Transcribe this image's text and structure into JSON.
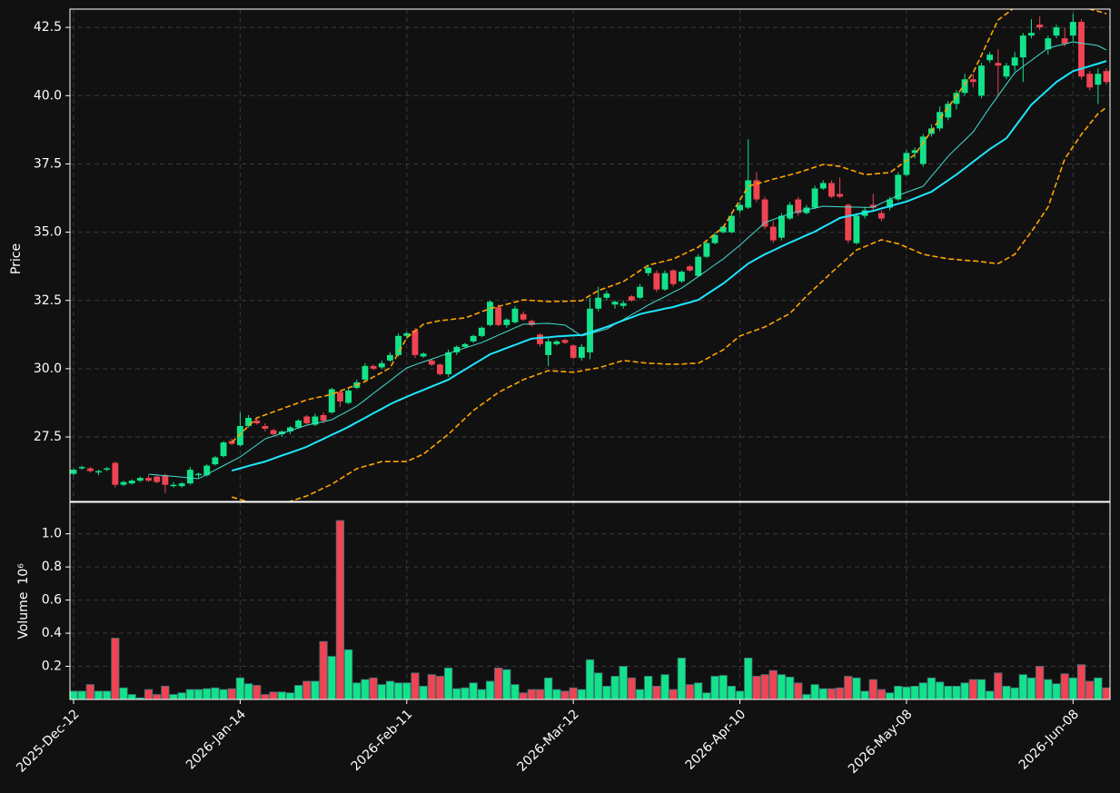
{
  "chart_data": {
    "type": "candlestick",
    "ylabel": "Price",
    "categories": [
      "2025-Dec-12",
      null,
      null,
      null,
      null,
      null,
      null,
      null,
      null,
      null,
      null,
      null,
      null,
      null,
      null,
      null,
      null,
      null,
      null,
      null,
      "2026-Jan-14",
      null,
      null,
      null,
      null,
      null,
      null,
      null,
      null,
      null,
      null,
      null,
      null,
      null,
      null,
      null,
      null,
      null,
      null,
      null,
      "2026-Feb-11",
      null,
      null,
      null,
      null,
      null,
      null,
      null,
      null,
      null,
      null,
      null,
      null,
      null,
      null,
      null,
      null,
      null,
      null,
      null,
      "2026-Mar-12",
      null,
      null,
      null,
      null,
      null,
      null,
      null,
      null,
      null,
      null,
      null,
      null,
      null,
      null,
      null,
      null,
      null,
      null,
      null,
      "2026-Apr-10",
      null,
      null,
      null,
      null,
      null,
      null,
      null,
      null,
      null,
      null,
      null,
      null,
      null,
      null,
      null,
      null,
      null,
      null,
      null,
      "2026-May-08",
      null,
      null,
      null,
      null,
      null,
      null,
      null,
      null,
      null,
      null,
      null,
      null,
      null,
      null,
      null,
      null,
      null,
      null,
      null,
      "2026-Jun-08",
      null,
      null,
      null,
      null
    ],
    "open": [
      26.15,
      26.35,
      26.35,
      26.2,
      26.3,
      26.55,
      25.75,
      25.8,
      25.9,
      26.0,
      26.05,
      26.1,
      25.7,
      25.7,
      25.8,
      26.1,
      26.1,
      26.5,
      26.8,
      27.35,
      27.2,
      27.9,
      28.1,
      27.9,
      27.75,
      27.6,
      27.7,
      27.85,
      28.25,
      27.95,
      28.3,
      28.4,
      29.15,
      28.75,
      29.3,
      29.6,
      30.1,
      30.05,
      30.3,
      30.5,
      31.2,
      31.4,
      30.45,
      30.3,
      30.15,
      29.8,
      30.6,
      30.8,
      31.0,
      31.2,
      31.6,
      32.25,
      31.6,
      31.7,
      32.0,
      31.75,
      31.25,
      30.5,
      30.9,
      31.05,
      30.85,
      30.4,
      30.6,
      32.2,
      32.6,
      32.35,
      32.3,
      32.65,
      32.6,
      33.5,
      33.5,
      32.9,
      33.6,
      33.2,
      33.75,
      33.4,
      34.1,
      34.6,
      35.0,
      35.0,
      35.8,
      35.9,
      36.9,
      36.2,
      35.2,
      34.8,
      35.5,
      36.2,
      35.7,
      35.9,
      36.6,
      36.8,
      36.4,
      36.0,
      34.6,
      35.6,
      36.0,
      35.7,
      35.9,
      36.2,
      37.1,
      37.9,
      37.5,
      38.6,
      38.8,
      39.2,
      39.7,
      40.1,
      40.6,
      40.0,
      41.3,
      41.2,
      40.7,
      41.1,
      41.4,
      42.2,
      42.6,
      41.7,
      42.2,
      42.1,
      42.2,
      42.7,
      40.8,
      40.4,
      40.9
    ],
    "high": [
      26.35,
      26.45,
      26.4,
      26.3,
      26.4,
      26.6,
      25.9,
      25.95,
      26.05,
      26.1,
      26.1,
      26.15,
      25.85,
      25.85,
      26.4,
      26.2,
      26.5,
      26.8,
      27.35,
      27.45,
      28.4,
      28.3,
      28.2,
      28.0,
      27.8,
      27.75,
      27.9,
      28.15,
      28.3,
      28.35,
      28.4,
      29.3,
      29.2,
      29.3,
      29.6,
      30.2,
      30.15,
      30.3,
      30.6,
      31.3,
      31.35,
      31.5,
      30.6,
      30.35,
      30.2,
      30.7,
      30.85,
      30.95,
      31.25,
      31.55,
      32.5,
      32.35,
      31.85,
      32.3,
      32.1,
      31.8,
      31.3,
      31.1,
      31.05,
      31.1,
      30.9,
      30.9,
      32.6,
      33.0,
      32.85,
      32.5,
      32.5,
      32.7,
      33.1,
      33.8,
      33.6,
      33.6,
      33.65,
      33.6,
      33.8,
      34.2,
      34.7,
      35.0,
      35.25,
      35.7,
      36.1,
      38.4,
      37.2,
      36.3,
      35.4,
      35.7,
      36.1,
      36.3,
      36.0,
      36.7,
      36.9,
      36.9,
      37.0,
      36.05,
      35.7,
      35.9,
      36.4,
      35.8,
      36.3,
      37.2,
      38.0,
      38.1,
      38.6,
      38.95,
      39.6,
      39.8,
      40.2,
      40.8,
      40.8,
      41.2,
      41.6,
      41.7,
      41.2,
      41.6,
      42.3,
      42.8,
      42.9,
      42.2,
      42.6,
      42.5,
      43.0,
      42.8,
      40.9,
      41.0,
      41.0
    ],
    "low": [
      26.1,
      26.3,
      26.2,
      26.1,
      26.25,
      25.65,
      25.7,
      25.75,
      25.85,
      25.85,
      25.8,
      25.45,
      25.65,
      25.65,
      25.75,
      26.0,
      26.05,
      26.45,
      26.75,
      27.2,
      27.15,
      27.85,
      27.95,
      27.7,
      27.55,
      27.5,
      27.6,
      27.8,
      27.95,
      27.9,
      28.0,
      28.35,
      28.6,
      28.7,
      29.25,
      29.55,
      29.95,
      30.0,
      30.25,
      30.45,
      31.1,
      30.4,
      30.4,
      30.1,
      29.75,
      29.7,
      30.5,
      30.75,
      30.95,
      31.15,
      31.55,
      31.55,
      31.5,
      31.65,
      31.75,
      31.55,
      30.8,
      30.1,
      30.85,
      30.9,
      30.35,
      30.3,
      30.35,
      32.1,
      32.5,
      32.2,
      32.2,
      32.45,
      32.55,
      33.4,
      32.8,
      32.85,
      33.0,
      33.15,
      33.55,
      33.35,
      34.05,
      34.55,
      34.95,
      34.95,
      35.7,
      35.85,
      36.1,
      35.1,
      34.6,
      34.7,
      35.45,
      35.6,
      35.65,
      35.85,
      36.55,
      36.25,
      36.25,
      34.6,
      34.55,
      35.5,
      35.75,
      35.4,
      35.8,
      36.15,
      37.05,
      37.7,
      37.4,
      38.5,
      38.7,
      39.1,
      39.5,
      40.0,
      40.3,
      39.9,
      41.2,
      40.0,
      40.6,
      40.9,
      40.5,
      42.1,
      42.4,
      41.5,
      42.1,
      41.8,
      42.0,
      40.6,
      40.2,
      39.7,
      40.4
    ],
    "close": [
      26.3,
      26.4,
      26.25,
      26.25,
      26.35,
      25.75,
      25.85,
      25.9,
      26.0,
      25.9,
      25.85,
      25.75,
      25.75,
      25.8,
      26.3,
      26.15,
      26.45,
      26.75,
      27.3,
      27.25,
      27.9,
      28.2,
      28.0,
      27.8,
      27.6,
      27.7,
      27.85,
      28.1,
      28.0,
      28.25,
      28.1,
      29.25,
      28.8,
      29.2,
      29.5,
      30.1,
      30.0,
      30.2,
      30.5,
      31.2,
      31.3,
      30.5,
      30.55,
      30.15,
      29.8,
      30.6,
      30.8,
      30.9,
      31.2,
      31.5,
      32.45,
      31.6,
      31.8,
      32.2,
      31.8,
      31.6,
      30.9,
      31.0,
      31.0,
      30.95,
      30.4,
      30.8,
      32.2,
      32.6,
      32.75,
      32.45,
      32.4,
      32.5,
      33.0,
      33.7,
      32.9,
      33.5,
      33.1,
      33.55,
      33.6,
      34.1,
      34.6,
      34.9,
      35.2,
      35.6,
      36.0,
      36.9,
      36.2,
      35.2,
      34.7,
      35.6,
      36.0,
      35.7,
      35.9,
      36.6,
      36.8,
      36.3,
      36.3,
      34.7,
      35.6,
      35.8,
      35.9,
      35.5,
      36.2,
      37.1,
      37.9,
      38.0,
      38.5,
      38.8,
      39.4,
      39.7,
      40.1,
      40.6,
      40.5,
      41.1,
      41.5,
      41.1,
      41.1,
      41.4,
      42.2,
      42.3,
      42.5,
      42.1,
      42.5,
      41.9,
      42.7,
      40.7,
      40.3,
      40.8,
      40.5
    ],
    "up_color": "#12e38a",
    "down_color": "#ef4452",
    "ylim": [
      25.14,
      43.17
    ],
    "yticks": [
      27.5,
      {
        "value": 30,
        "label": "30.0"
      },
      32.5,
      {
        "value": 35,
        "label": "35.0"
      },
      37.5,
      {
        "value": 40,
        "label": "40.0"
      },
      42.5
    ],
    "grid": true,
    "overlays": [
      {
        "color": "#40e0d0",
        "width": 1,
        "style": "solid",
        "values": [
          null,
          null,
          null,
          null,
          null,
          null,
          null,
          null,
          null,
          26.14,
          26.11,
          26.08,
          26.06,
          26.03,
          26.0,
          25.97,
          26.13,
          26.29,
          26.45,
          26.61,
          26.77,
          26.99,
          27.21,
          27.43,
          27.53,
          27.63,
          27.73,
          27.83,
          27.93,
          28.0,
          28.06,
          28.13,
          28.3,
          28.46,
          28.63,
          28.86,
          29.1,
          29.33,
          29.56,
          29.8,
          30.03,
          30.14,
          30.25,
          30.35,
          30.46,
          30.56,
          30.66,
          30.76,
          30.86,
          30.96,
          31.09,
          31.23,
          31.36,
          31.5,
          31.63,
          31.64,
          31.65,
          31.66,
          31.63,
          31.6,
          31.4,
          31.2,
          31.28,
          31.37,
          31.45,
          31.63,
          31.8,
          31.98,
          32.15,
          32.33,
          32.49,
          32.64,
          32.8,
          32.95,
          33.16,
          33.38,
          33.59,
          33.81,
          34.02,
          34.27,
          34.52,
          34.8,
          35.07,
          35.35,
          35.46,
          35.57,
          35.68,
          35.75,
          35.82,
          35.88,
          35.95,
          35.94,
          35.93,
          35.92,
          35.92,
          35.91,
          35.91,
          36.06,
          36.2,
          36.35,
          36.46,
          36.57,
          36.68,
          37.05,
          37.41,
          37.78,
          38.08,
          38.37,
          38.67,
          39.12,
          39.57,
          39.99,
          40.42,
          40.84,
          41.07,
          41.29,
          41.52,
          41.74,
          41.82,
          41.89,
          41.97,
          41.92,
          41.88,
          41.83,
          41.67
        ]
      },
      {
        "color": "#1ee6ff",
        "width": 2,
        "style": "solid",
        "values": [
          null,
          null,
          null,
          null,
          null,
          null,
          null,
          null,
          null,
          null,
          null,
          null,
          null,
          null,
          null,
          null,
          null,
          null,
          null,
          26.27,
          26.35,
          26.44,
          26.52,
          26.6,
          26.71,
          26.82,
          26.92,
          27.03,
          27.14,
          27.29,
          27.43,
          27.58,
          27.72,
          27.87,
          28.04,
          28.2,
          28.37,
          28.53,
          28.7,
          28.84,
          28.97,
          29.1,
          29.22,
          29.35,
          29.47,
          29.6,
          29.79,
          29.97,
          30.16,
          30.34,
          30.53,
          30.64,
          30.76,
          30.87,
          30.99,
          31.1,
          31.13,
          31.15,
          31.18,
          31.2,
          31.22,
          31.23,
          31.33,
          31.43,
          31.53,
          31.65,
          31.77,
          31.88,
          32.0,
          32.07,
          32.13,
          32.2,
          32.26,
          32.35,
          32.43,
          32.52,
          32.72,
          32.92,
          33.12,
          33.36,
          33.61,
          33.85,
          34.02,
          34.19,
          34.33,
          34.48,
          34.62,
          34.75,
          34.89,
          35.02,
          35.19,
          35.35,
          35.52,
          35.59,
          35.65,
          35.72,
          35.78,
          35.87,
          35.95,
          36.04,
          36.12,
          36.24,
          36.36,
          36.48,
          36.69,
          36.9,
          37.11,
          37.34,
          37.58,
          37.81,
          38.04,
          38.24,
          38.44,
          38.85,
          39.26,
          39.67,
          39.95,
          40.22,
          40.5,
          40.7,
          40.9,
          40.99,
          41.08,
          41.17,
          41.27
        ]
      },
      {
        "color": "#ffa500",
        "width": 1.6,
        "style": "dashed",
        "values": [
          null,
          null,
          null,
          null,
          null,
          null,
          null,
          null,
          null,
          null,
          null,
          null,
          null,
          null,
          null,
          null,
          null,
          null,
          null,
          27.3,
          27.6,
          27.9,
          28.2,
          28.31,
          28.42,
          28.53,
          28.64,
          28.75,
          28.86,
          28.93,
          28.99,
          29.06,
          29.18,
          29.3,
          29.41,
          29.53,
          29.7,
          29.86,
          30.03,
          30.58,
          31.13,
          31.38,
          31.63,
          31.7,
          31.76,
          31.79,
          31.83,
          31.86,
          31.97,
          32.09,
          32.2,
          32.28,
          32.36,
          32.44,
          32.52,
          32.5,
          32.48,
          32.46,
          32.47,
          32.47,
          32.48,
          32.49,
          32.68,
          32.86,
          32.97,
          33.08,
          33.19,
          33.39,
          33.59,
          33.79,
          33.87,
          33.94,
          34.02,
          34.16,
          34.31,
          34.45,
          34.69,
          34.94,
          35.18,
          35.68,
          36.18,
          36.68,
          36.77,
          36.85,
          36.94,
          37.02,
          37.1,
          37.18,
          37.28,
          37.38,
          37.48,
          37.45,
          37.41,
          37.31,
          37.21,
          37.11,
          37.13,
          37.16,
          37.18,
          37.4,
          37.62,
          37.84,
          38.27,
          38.71,
          39.14,
          39.57,
          39.99,
          40.42,
          40.84,
          41.48,
          42.13,
          42.77,
          43.0,
          43.23,
          43.32,
          43.41,
          43.5,
          43.49,
          43.48,
          43.46,
          43.45,
          43.31,
          43.17,
          43.09,
          43.0
        ]
      },
      {
        "color": "#ffa500",
        "width": 1.6,
        "style": "dashed",
        "values": [
          null,
          null,
          null,
          null,
          null,
          null,
          null,
          null,
          null,
          null,
          null,
          null,
          null,
          null,
          null,
          null,
          null,
          null,
          null,
          25.3,
          25.21,
          25.13,
          25.04,
          25.04,
          25.04,
          25.04,
          25.14,
          25.24,
          25.34,
          25.48,
          25.63,
          25.77,
          25.96,
          26.15,
          26.34,
          26.43,
          26.51,
          26.6,
          26.6,
          26.6,
          26.6,
          26.74,
          26.87,
          27.11,
          27.36,
          27.6,
          27.89,
          28.18,
          28.47,
          28.69,
          28.91,
          29.13,
          29.29,
          29.44,
          29.6,
          29.71,
          29.82,
          29.93,
          29.91,
          29.89,
          29.87,
          29.92,
          29.98,
          30.03,
          30.12,
          30.21,
          30.3,
          30.27,
          30.23,
          30.2,
          30.19,
          30.17,
          30.16,
          30.17,
          30.19,
          30.2,
          30.36,
          30.53,
          30.69,
          30.95,
          31.2,
          31.31,
          31.42,
          31.53,
          31.69,
          31.86,
          32.02,
          32.34,
          32.66,
          32.95,
          33.23,
          33.52,
          33.8,
          34.07,
          34.35,
          34.47,
          34.6,
          34.72,
          34.65,
          34.58,
          34.45,
          34.32,
          34.19,
          34.13,
          34.08,
          34.02,
          34.0,
          33.97,
          33.95,
          33.92,
          33.88,
          33.85,
          34.02,
          34.19,
          34.61,
          35.02,
          35.47,
          35.92,
          36.8,
          37.68,
          38.13,
          38.58,
          38.96,
          39.34,
          39.57
        ]
      }
    ],
    "volume": {
      "ylabel": "Volume",
      "scale_label": "10⁶",
      "values": [
        0.05,
        0.05,
        0.09,
        0.05,
        0.05,
        0.37,
        0.07,
        0.03,
        0.01,
        0.06,
        0.03,
        0.08,
        0.03,
        0.04,
        0.06,
        0.06,
        0.065,
        0.07,
        0.06,
        0.065,
        0.13,
        0.095,
        0.085,
        0.03,
        0.045,
        0.045,
        0.04,
        0.085,
        0.11,
        0.11,
        0.35,
        0.26,
        1.08,
        0.3,
        0.1,
        0.12,
        0.13,
        0.09,
        0.11,
        0.1,
        0.1,
        0.16,
        0.08,
        0.15,
        0.14,
        0.19,
        0.065,
        0.07,
        0.1,
        0.06,
        0.11,
        0.19,
        0.18,
        0.09,
        0.04,
        0.06,
        0.06,
        0.13,
        0.06,
        0.05,
        0.07,
        0.06,
        0.24,
        0.16,
        0.08,
        0.14,
        0.2,
        0.13,
        0.06,
        0.14,
        0.08,
        0.15,
        0.06,
        0.25,
        0.09,
        0.1,
        0.04,
        0.14,
        0.145,
        0.08,
        0.05,
        0.25,
        0.14,
        0.15,
        0.175,
        0.15,
        0.135,
        0.1,
        0.03,
        0.09,
        0.065,
        0.065,
        0.07,
        0.14,
        0.13,
        0.05,
        0.12,
        0.06,
        0.04,
        0.08,
        0.075,
        0.08,
        0.1,
        0.13,
        0.105,
        0.08,
        0.08,
        0.1,
        0.12,
        0.12,
        0.05,
        0.16,
        0.08,
        0.07,
        0.15,
        0.13,
        0.2,
        0.12,
        0.095,
        0.155,
        0.13,
        0.21,
        0.11,
        0.13,
        0.07
      ],
      "ylim": [
        0,
        1.19
      ],
      "yticks": [
        0.2,
        0.4,
        0.6,
        0.8,
        {
          "value": 1,
          "label": "1.0"
        }
      ]
    }
  }
}
